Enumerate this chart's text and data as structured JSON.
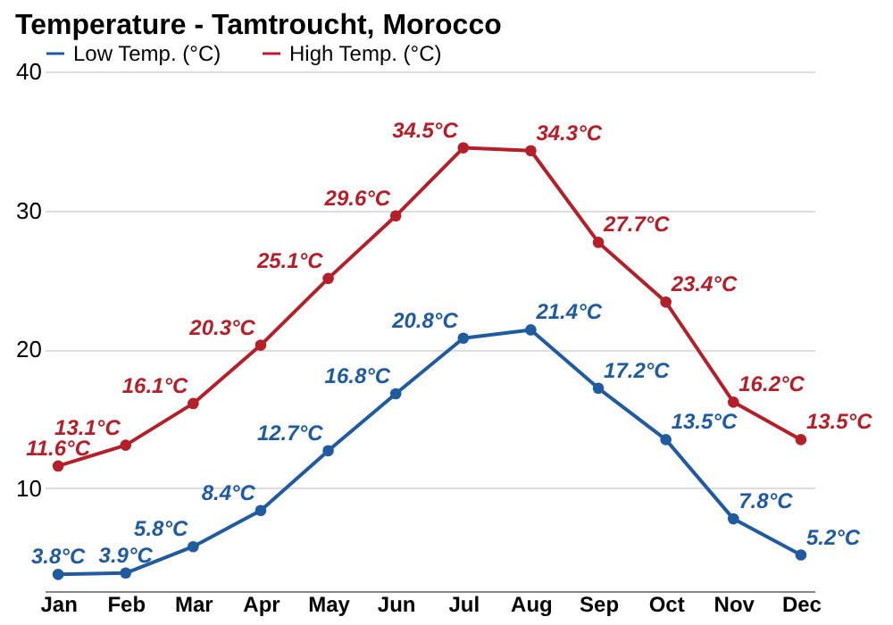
{
  "chart_data": {
    "type": "line",
    "title": "Temperature - Tamtroucht, Morocco",
    "categories": [
      "Jan",
      "Feb",
      "Mar",
      "Apr",
      "May",
      "Jun",
      "Jul",
      "Aug",
      "Sep",
      "Oct",
      "Nov",
      "Dec"
    ],
    "series": [
      {
        "name": "Low Temp. (°C)",
        "color": "#1f5b9e",
        "values": [
          3.8,
          3.9,
          5.8,
          8.4,
          12.7,
          16.8,
          20.8,
          21.4,
          17.2,
          13.5,
          7.8,
          5.2
        ],
        "value_labels": [
          "3.8°C",
          "3.9°C",
          "5.8°C",
          "8.4°C",
          "12.7°C",
          "16.8°C",
          "20.8°C",
          "21.4°C",
          "17.2°C",
          "13.5°C",
          "7.8°C",
          "5.2°C"
        ]
      },
      {
        "name": "High Temp. (°C)",
        "color": "#b3202a",
        "values": [
          11.6,
          13.1,
          16.1,
          20.3,
          25.1,
          29.6,
          34.5,
          34.3,
          27.7,
          23.4,
          16.2,
          13.5
        ],
        "value_labels": [
          "11.6°C",
          "13.1°C",
          "16.1°C",
          "20.3°C",
          "25.1°C",
          "29.6°C",
          "34.5°C",
          "34.3°C",
          "27.7°C",
          "23.4°C",
          "16.2°C",
          "13.5°C"
        ]
      }
    ],
    "ylim": [
      2.6,
      40
    ],
    "yticks": [
      10,
      20,
      30,
      40
    ],
    "grid": "y",
    "legend": "top left",
    "marker": "circle",
    "line_style": "solid"
  }
}
